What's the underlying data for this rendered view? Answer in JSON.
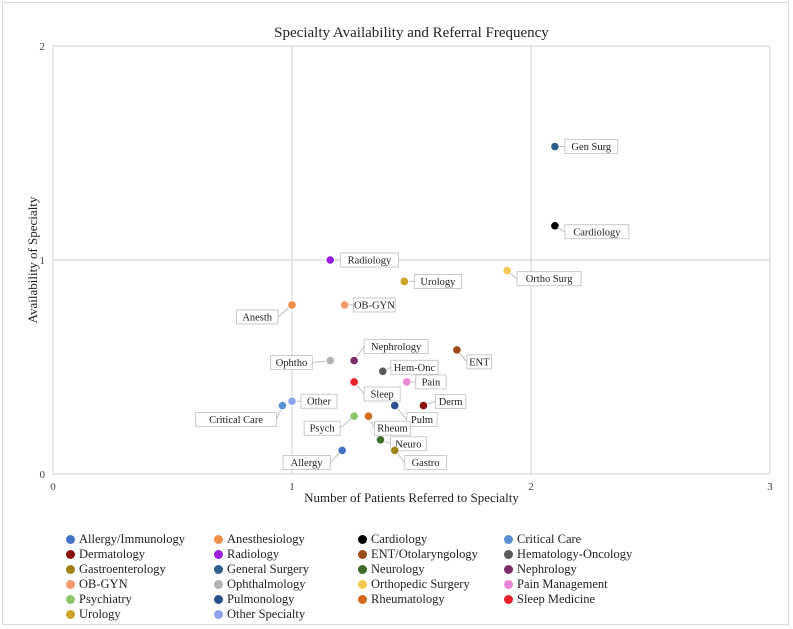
{
  "chart_data": {
    "type": "scatter",
    "title": "Specialty Availability and Referral Frequency",
    "xlabel": "Number of Patients Referred to Specialty",
    "ylabel": "Availability of Specialty",
    "xlim": [
      0,
      3
    ],
    "ylim": [
      0,
      2
    ],
    "xticks": [
      "0",
      "1",
      "2",
      "3"
    ],
    "yticks": [
      "0",
      "1",
      "2"
    ],
    "grid": true,
    "points": [
      {
        "label": "Gen Surg",
        "legend": "General Surgery",
        "x": 2.1,
        "y": 1.53,
        "color": "#2e5f8c"
      },
      {
        "label": "Cardiology",
        "legend": "Cardiology",
        "x": 2.1,
        "y": 1.16,
        "color": "#000000"
      },
      {
        "label": "Radiology",
        "legend": "Radiology",
        "x": 1.16,
        "y": 1.0,
        "color": "#9b1de0"
      },
      {
        "label": "Urology",
        "legend": "Urology",
        "x": 1.47,
        "y": 0.9,
        "color": "#c9a227"
      },
      {
        "label": "Ortho Surg",
        "legend": "Orthopedic Surgery",
        "x": 1.9,
        "y": 0.95,
        "color": "#f2c94c"
      },
      {
        "label": "Anesth",
        "legend": "Anesthesiology",
        "x": 1.0,
        "y": 0.79,
        "color": "#ef8d4a"
      },
      {
        "label": "OB-GYN",
        "legend": "OB-GYN",
        "x": 1.22,
        "y": 0.79,
        "color": "#f29a6b"
      },
      {
        "label": "Nephrology",
        "legend": "Nephrology",
        "x": 1.26,
        "y": 0.53,
        "color": "#7a2f6b"
      },
      {
        "label": "Ophtho",
        "legend": "Ophthalmology",
        "x": 1.16,
        "y": 0.53,
        "color": "#b3b3b3"
      },
      {
        "label": "ENT",
        "legend": "ENT/Otolaryngology",
        "x": 1.69,
        "y": 0.58,
        "color": "#9b4a1a"
      },
      {
        "label": "Hem-Onc",
        "legend": "Hematology-Oncology",
        "x": 1.38,
        "y": 0.48,
        "color": "#595959"
      },
      {
        "label": "Sleep",
        "legend": "Sleep Medicine",
        "x": 1.26,
        "y": 0.43,
        "color": "#e8202a"
      },
      {
        "label": "Pain",
        "legend": "Pain Management",
        "x": 1.48,
        "y": 0.43,
        "color": "#e986d6"
      },
      {
        "label": "Derm",
        "legend": "Dermatology",
        "x": 1.55,
        "y": 0.32,
        "color": "#8b0f0f"
      },
      {
        "label": "Pulm",
        "legend": "Pulmonology",
        "x": 1.43,
        "y": 0.32,
        "color": "#2b4f8f"
      },
      {
        "label": "Rheum",
        "legend": "Rheumatology",
        "x": 1.32,
        "y": 0.27,
        "color": "#d2691e"
      },
      {
        "label": "Psych",
        "legend": "Psychiatry",
        "x": 1.26,
        "y": 0.27,
        "color": "#8cc46b"
      },
      {
        "label": "Other",
        "legend": "Other Specialty",
        "x": 1.0,
        "y": 0.34,
        "color": "#8ea2ea"
      },
      {
        "label": "Critical Care",
        "legend": "Critical Care",
        "x": 0.96,
        "y": 0.32,
        "color": "#5b8fd4"
      },
      {
        "label": "Neuro",
        "legend": "Neurology",
        "x": 1.37,
        "y": 0.16,
        "color": "#3f6b2a"
      },
      {
        "label": "Allergy",
        "legend": "Allergy/Immunology",
        "x": 1.21,
        "y": 0.11,
        "color": "#4472c4"
      },
      {
        "label": "Gastro",
        "legend": "Gastroenterology",
        "x": 1.43,
        "y": 0.11,
        "color": "#a08214"
      }
    ],
    "legend": [
      {
        "name": "Allergy/Immunology",
        "color": "#4472c4"
      },
      {
        "name": "Anesthesiology",
        "color": "#ef8d4a"
      },
      {
        "name": "Cardiology",
        "color": "#000000"
      },
      {
        "name": "Critical Care",
        "color": "#5b8fd4"
      },
      {
        "name": "Dermatology",
        "color": "#8b0f0f"
      },
      {
        "name": "Radiology",
        "color": "#9b1de0"
      },
      {
        "name": "ENT/Otolaryngology",
        "color": "#9b4a1a"
      },
      {
        "name": "Hematology-Oncology",
        "color": "#595959"
      },
      {
        "name": "Gastroenterology",
        "color": "#a08214"
      },
      {
        "name": "General Surgery",
        "color": "#2e5f8c"
      },
      {
        "name": "Neurology",
        "color": "#3f6b2a"
      },
      {
        "name": "Nephrology",
        "color": "#7a2f6b"
      },
      {
        "name": "OB-GYN",
        "color": "#f29a6b"
      },
      {
        "name": "Ophthalmology",
        "color": "#b3b3b3"
      },
      {
        "name": "Orthopedic Surgery",
        "color": "#f2c94c"
      },
      {
        "name": "Pain Management",
        "color": "#e986d6"
      },
      {
        "name": "Psychiatry",
        "color": "#8cc46b"
      },
      {
        "name": "Pulmonology",
        "color": "#2b4f8f"
      },
      {
        "name": "Rheumatology",
        "color": "#d2691e"
      },
      {
        "name": "Sleep Medicine",
        "color": "#e8202a"
      },
      {
        "name": "Urology",
        "color": "#c9a227"
      },
      {
        "name": "Other Specialty",
        "color": "#8ea2ea"
      }
    ]
  }
}
